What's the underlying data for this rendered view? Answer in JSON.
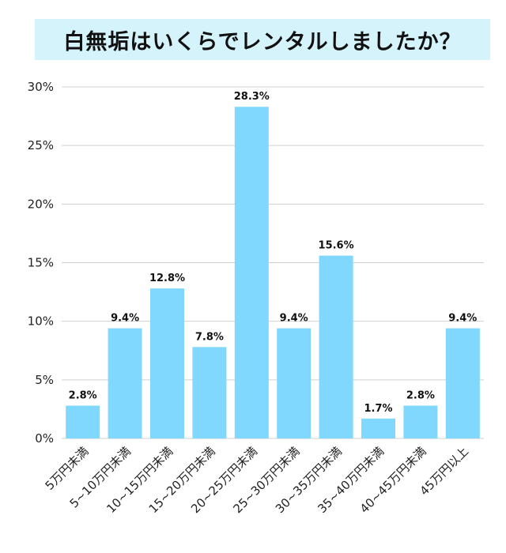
{
  "chart_data": {
    "type": "bar",
    "title": "白無垢はいくらでレンタルしましたか？",
    "categories": [
      "5万円未満",
      "5~10万円未満",
      "10~15万円未満",
      "15~20万円未満",
      "20~25万円未満",
      "25~30万円未満",
      "30~35万円未満",
      "35~40万円未満",
      "40~45万円未満",
      "45万円以上"
    ],
    "values": [
      2.8,
      9.4,
      12.8,
      7.8,
      28.3,
      9.4,
      15.6,
      1.7,
      2.8,
      9.4
    ],
    "data_labels": [
      "2.8%",
      "9.4%",
      "12.8%",
      "7.8%",
      "28.3%",
      "9.4%",
      "15.6%",
      "1.7%",
      "2.8%",
      "9.4%"
    ],
    "ylim": [
      0,
      30
    ],
    "yticks": [
      "0%",
      "5%",
      "10%",
      "15%",
      "20%",
      "25%",
      "30%"
    ],
    "xlabel": "",
    "ylabel": "",
    "grid": true,
    "bar_color": "#80d8ff",
    "title_background": "#d5f3fb"
  }
}
